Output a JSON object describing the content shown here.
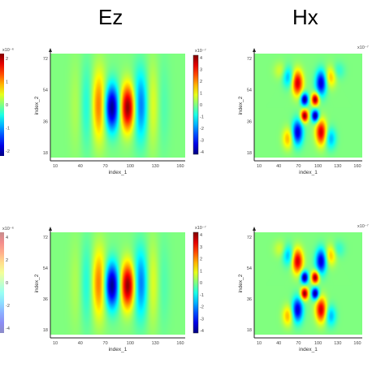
{
  "column_titles": [
    "Ez",
    "Hx"
  ],
  "chart_data": [
    {
      "type": "heatmap",
      "field": "Ez",
      "row": 1,
      "xlabel": "index_1",
      "ylabel": "index_2",
      "x_ticks": [
        "10",
        "40",
        "70",
        "100",
        "130",
        "160"
      ],
      "y_ticks": [
        "72",
        "54",
        "36",
        "18"
      ],
      "colorbar_exponent": "x10⁻⁷",
      "colorbar_ticks": [
        "4",
        "3",
        "2",
        "1",
        "0",
        "-1",
        "-2",
        "-3",
        "-4"
      ],
      "colormap": "jet",
      "pattern": "dipole"
    },
    {
      "type": "heatmap",
      "field": "Hx",
      "row": 1,
      "xlabel": "index_1",
      "ylabel": "index_2",
      "x_ticks": [
        "10",
        "40",
        "70",
        "100",
        "130",
        "160"
      ],
      "y_ticks": [
        "72",
        "54",
        "36",
        "18"
      ],
      "colorbar_exponent": "x10⁻⁷",
      "colormap": "jet",
      "pattern": "quadrupole"
    },
    {
      "type": "heatmap",
      "field": "Ez",
      "row": 2,
      "xlabel": "index_1",
      "ylabel": "index_2",
      "x_ticks": [
        "10",
        "40",
        "70",
        "100",
        "130",
        "160"
      ],
      "y_ticks": [
        "72",
        "54",
        "36",
        "18"
      ],
      "colorbar_exponent": "x10⁻⁷",
      "colorbar_ticks": [
        "4",
        "3",
        "2",
        "1",
        "0",
        "-1",
        "-2",
        "-3",
        "-4"
      ],
      "colormap": "jet",
      "pattern": "dipole"
    },
    {
      "type": "heatmap",
      "field": "Hx",
      "row": 2,
      "xlabel": "index_1",
      "ylabel": "index_2",
      "x_ticks": [
        "10",
        "40",
        "70",
        "100",
        "130",
        "160"
      ],
      "y_ticks": [
        "72",
        "54",
        "36",
        "18"
      ],
      "colorbar_exponent": "x10⁻⁷",
      "colormap": "jet",
      "pattern": "quadrupole"
    }
  ],
  "left_partial_colorbars": [
    {
      "exponent": "x10⁻⁶",
      "ticks": [
        "2",
        "1",
        "0",
        "-1",
        "-2"
      ]
    },
    {
      "exponent": "x10⁻⁶",
      "ticks": [
        "4",
        "2",
        "0",
        "-2",
        "-4"
      ]
    }
  ]
}
